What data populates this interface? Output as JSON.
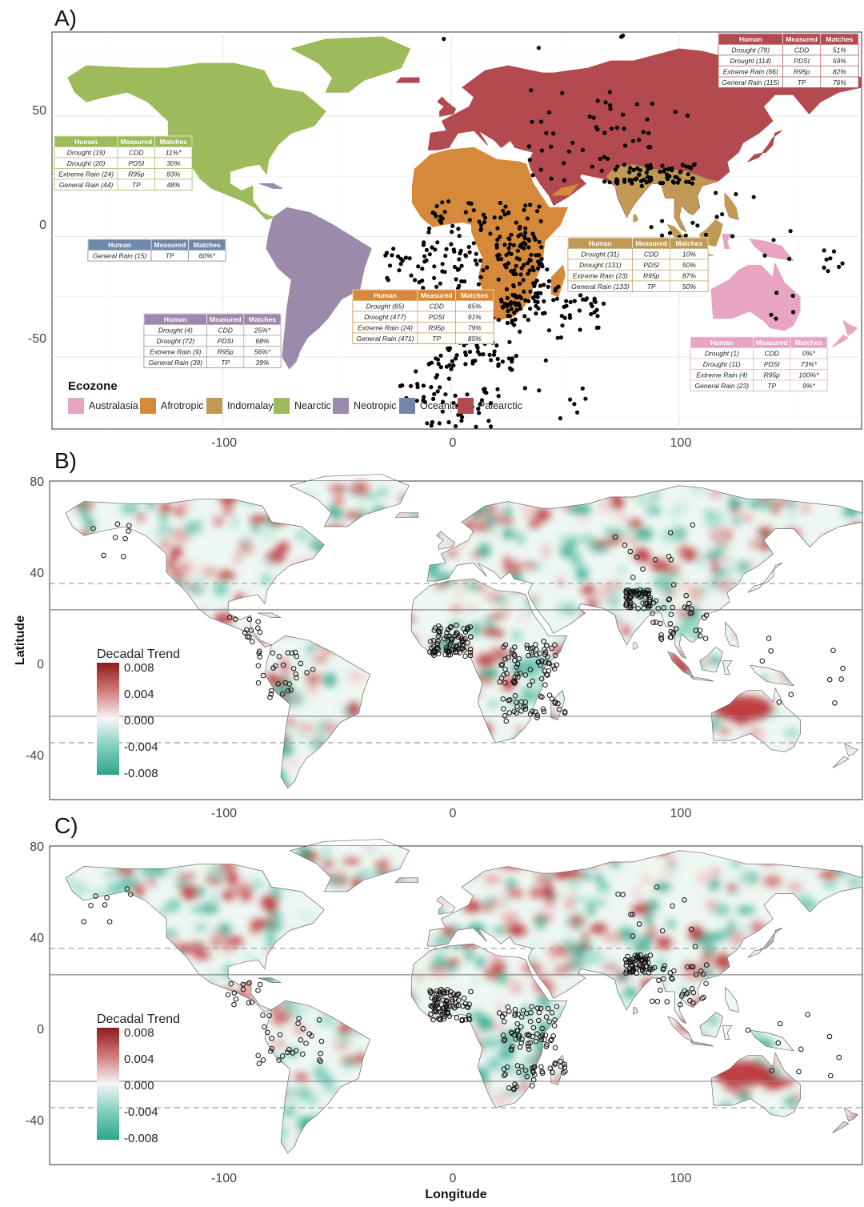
{
  "panels": {
    "A": {
      "letter": "A)",
      "ylabels": [
        "50",
        "0",
        "-50"
      ],
      "xlabels": [
        "-100",
        "0",
        "100"
      ],
      "legend": {
        "title": "Ecozone",
        "items": [
          {
            "name": "Australasia",
            "color": "#e8a5c2"
          },
          {
            "name": "Afrotropic",
            "color": "#d6893a"
          },
          {
            "name": "Indomalay",
            "color": "#c09a55"
          },
          {
            "name": "Nearctic",
            "color": "#9dbb5a"
          },
          {
            "name": "Neotropic",
            "color": "#9b8aaa"
          },
          {
            "name": "Oceania",
            "color": "#7188a8"
          },
          {
            "name": "Palearctic",
            "color": "#b24a50"
          }
        ]
      },
      "tables": [
        {
          "zone": "Palearctic",
          "color": "#b24a50",
          "header": [
            "Human",
            "Measured",
            "Matches"
          ],
          "rows": [
            [
              "Drought (79)",
              "CDD",
              "51%"
            ],
            [
              "Drought (114)",
              "PDSI",
              "59%"
            ],
            [
              "Extreme Rain (66)",
              "R95p",
              "82%"
            ],
            [
              "General Rain (115)",
              "TP",
              "76%"
            ]
          ]
        },
        {
          "zone": "Nearctic",
          "color": "#9dbb5a",
          "header": [
            "Human",
            "Measured",
            "Matches"
          ],
          "rows": [
            [
              "Drought (19)",
              "CDD",
              "11%*"
            ],
            [
              "Drought (20)",
              "PDSI",
              "30%"
            ],
            [
              "Extreme Rain (24)",
              "R95p",
              "83%"
            ],
            [
              "General Rain (44)",
              "TP",
              "48%"
            ]
          ]
        },
        {
          "zone": "Oceania",
          "color": "#7188a8",
          "header": [
            "Human",
            "Measured",
            "Matches"
          ],
          "rows": [
            [
              "General Rain (15)",
              "TP",
              "60%*"
            ]
          ]
        },
        {
          "zone": "Indomalay",
          "color": "#c09a55",
          "header": [
            "Human",
            "Measured",
            "Matches"
          ],
          "rows": [
            [
              "Drought (31)",
              "CDD",
              "10%"
            ],
            [
              "Drought (131)",
              "PDSI",
              "50%"
            ],
            [
              "Extreme Rain (23)",
              "R95p",
              "87%"
            ],
            [
              "General Rain (133)",
              "TP",
              "50%"
            ]
          ]
        },
        {
          "zone": "Afrotropic",
          "color": "#d6893a",
          "header": [
            "Human",
            "Measured",
            "Matches"
          ],
          "rows": [
            [
              "Drought (65)",
              "CDD",
              "65%"
            ],
            [
              "Drought (477)",
              "PDSI",
              "91%"
            ],
            [
              "Extreme Rain (24)",
              "R95p",
              "79%"
            ],
            [
              "General Rain (471)",
              "TP",
              "85%"
            ]
          ]
        },
        {
          "zone": "Neotropic",
          "color": "#9b8aaa",
          "header": [
            "Human",
            "Measured",
            "Matches"
          ],
          "rows": [
            [
              "Drought (4)",
              "CDD",
              "25%*"
            ],
            [
              "Drought (72)",
              "PDSI",
              "68%"
            ],
            [
              "Extreme Rain (9)",
              "R95p",
              "56%*"
            ],
            [
              "General Rain (39)",
              "TP",
              "39%"
            ]
          ]
        },
        {
          "zone": "Australasia",
          "color": "#e8a5c2",
          "header": [
            "Human",
            "Measured",
            "Matches"
          ],
          "rows": [
            [
              "Drought (1)",
              "CDD",
              "0%*"
            ],
            [
              "Drought (11)",
              "PDSI",
              "73%*"
            ],
            [
              "Extreme Rain (4)",
              "R95p",
              "100%*"
            ],
            [
              "General Rain (23)",
              "TP",
              "9%*"
            ]
          ]
        }
      ]
    },
    "B": {
      "letter": "B)",
      "ylabels": [
        "80",
        "40",
        "0",
        "-40"
      ],
      "xlabels": [
        "-100",
        "0",
        "100"
      ],
      "ylabel": "Latitude",
      "colorbar": {
        "title": "Decadal Trend",
        "labels": [
          "0.008",
          "0.004",
          "0.000",
          "-0.004",
          "-0.008"
        ]
      }
    },
    "C": {
      "letter": "C)",
      "ylabels": [
        "80",
        "40",
        "0",
        "-40"
      ],
      "xlabels": [
        "-100",
        "0",
        "100"
      ],
      "xlabel": "Longitude",
      "colorbar": {
        "title": "Decadal Trend",
        "labels": [
          "0.008",
          "0.004",
          "0.000",
          "-0.004",
          "-0.008"
        ]
      }
    }
  },
  "chart_data": [
    {
      "type": "heatmap",
      "panel": "A",
      "description_map": "world map coloured by ecozone with black site points",
      "xlim": [
        -175,
        180
      ],
      "ylim": [
        -80,
        85
      ],
      "x_ticks": [
        -100,
        0,
        100
      ],
      "y_ticks": [
        -50,
        0,
        50
      ],
      "legend": "bottom-left",
      "grid": true
    },
    {
      "type": "heatmap",
      "panel": "B",
      "xlim": [
        -175,
        180
      ],
      "ylim": [
        -60,
        80
      ],
      "x_ticks": [
        -100,
        0,
        100
      ],
      "y_ticks": [
        -40,
        0,
        40,
        80
      ],
      "color_scale": [
        -0.008,
        0.008
      ],
      "ylabel": "Latitude",
      "reference_lines": {
        "solid": [
          23.4,
          -23.4
        ],
        "dashed": [
          35,
          -35
        ]
      }
    },
    {
      "type": "heatmap",
      "panel": "C",
      "xlim": [
        -175,
        180
      ],
      "ylim": [
        -60,
        80
      ],
      "x_ticks": [
        -100,
        0,
        100
      ],
      "y_ticks": [
        -40,
        0,
        40,
        80
      ],
      "color_scale": [
        -0.008,
        0.008
      ],
      "xlabel": "Longitude",
      "reference_lines": {
        "solid": [
          23.4,
          -23.4
        ],
        "dashed": [
          35,
          -35
        ]
      }
    }
  ]
}
